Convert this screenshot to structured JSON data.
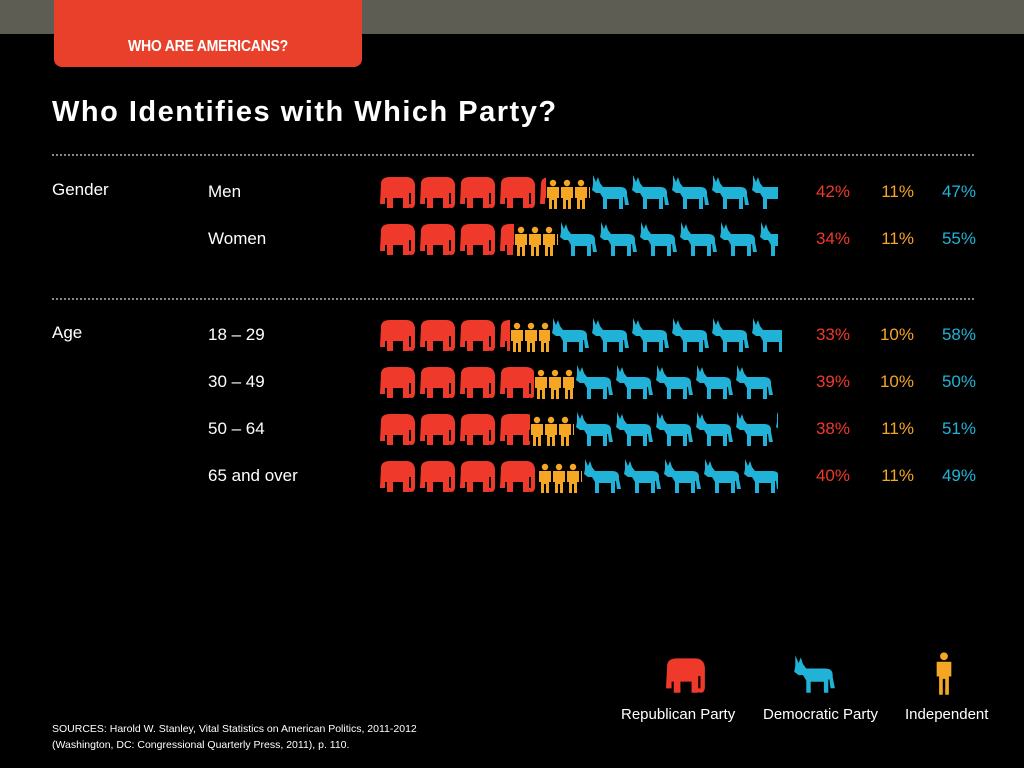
{
  "header": {
    "tab_label": "WHO ARE AMERICANS?"
  },
  "title": "Who Identifies with Which Party?",
  "colors": {
    "republican": "#ef3a2b",
    "independent": "#f5a623",
    "democratic": "#21b3d7",
    "tab": "#e8402a",
    "top_bar": "#5e5d53"
  },
  "chart_data": {
    "type": "pictograph-stacked-bar",
    "title": "Who Identifies with Which Party?",
    "series_names": [
      "Republican Party",
      "Independent",
      "Democratic Party"
    ],
    "groups": [
      {
        "name": "Gender",
        "rows": [
          {
            "label": "Men",
            "values": [
              42,
              11,
              47
            ],
            "labels": [
              "42%",
              "11%",
              "47%"
            ]
          },
          {
            "label": "Women",
            "values": [
              34,
              11,
              55
            ],
            "labels": [
              "34%",
              "11%",
              "55%"
            ]
          }
        ]
      },
      {
        "name": "Age",
        "rows": [
          {
            "label": "18 – 29",
            "values": [
              33,
              10,
              58
            ],
            "labels": [
              "33%",
              "10%",
              "58%"
            ]
          },
          {
            "label": "30 – 49",
            "values": [
              39,
              10,
              50
            ],
            "labels": [
              "39%",
              "10%",
              "50%"
            ]
          },
          {
            "label": "50 – 64",
            "values": [
              38,
              11,
              51
            ],
            "labels": [
              "38%",
              "11%",
              "51%"
            ]
          },
          {
            "label": "65 and over",
            "values": [
              40,
              11,
              49
            ],
            "labels": [
              "40%",
              "11%",
              "49%"
            ]
          }
        ]
      }
    ]
  },
  "legend": {
    "republican": "Republican Party",
    "democratic": "Democratic Party",
    "independent": "Independent",
    "icons": [
      "elephant-icon",
      "donkey-icon",
      "person-icon"
    ]
  },
  "sources": {
    "line1": "SOURCES: Harold W. Stanley, Vital Statistics on American Politics, 2011-2012",
    "line2": "(Washington, DC: Congressional Quarterly Press, 2011), p. 110."
  }
}
